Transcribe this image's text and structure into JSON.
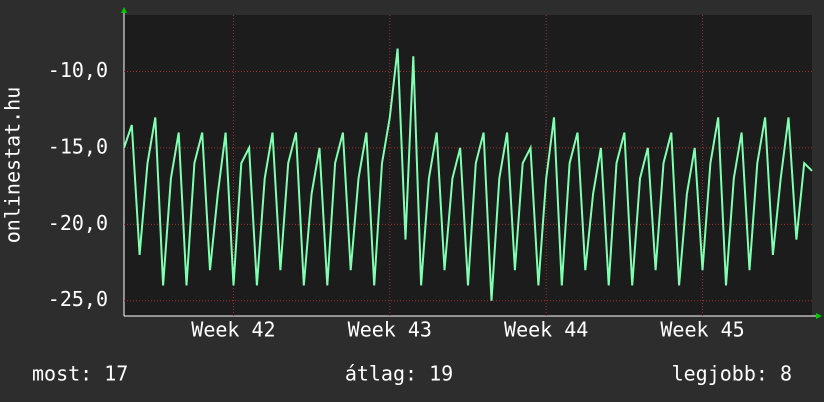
{
  "chart_data": {
    "type": "line",
    "y_axis_title": "onlinestat.hu",
    "xlim": [
      41.3,
      45.7
    ],
    "xticks": [
      {
        "value": 42,
        "label": "Week 42"
      },
      {
        "value": 43,
        "label": "Week 43"
      },
      {
        "value": 44,
        "label": "Week 44"
      },
      {
        "value": 45,
        "label": "Week 45"
      }
    ],
    "ylim": [
      -26,
      -6.3
    ],
    "yticks": [
      {
        "value": -25,
        "label": "-25,0"
      },
      {
        "value": -20,
        "label": "-20,0"
      },
      {
        "value": -15,
        "label": "-15,0"
      },
      {
        "value": -10,
        "label": "-10,0"
      }
    ],
    "grid": true,
    "series": [
      {
        "color": "#80ffb0",
        "x": [
          41.3,
          41.35,
          41.4,
          41.45,
          41.5,
          41.55,
          41.6,
          41.65,
          41.7,
          41.75,
          41.8,
          41.85,
          41.9,
          41.95,
          42.0,
          42.05,
          42.1,
          42.15,
          42.2,
          42.25,
          42.3,
          42.35,
          42.4,
          42.45,
          42.5,
          42.55,
          42.6,
          42.65,
          42.7,
          42.75,
          42.8,
          42.85,
          42.9,
          42.95,
          43.0,
          43.05,
          43.1,
          43.15,
          43.2,
          43.25,
          43.3,
          43.35,
          43.4,
          43.45,
          43.5,
          43.55,
          43.6,
          43.65,
          43.7,
          43.75,
          43.8,
          43.85,
          43.9,
          43.95,
          44.0,
          44.05,
          44.1,
          44.15,
          44.2,
          44.25,
          44.3,
          44.35,
          44.4,
          44.45,
          44.5,
          44.55,
          44.6,
          44.65,
          44.7,
          44.75,
          44.8,
          44.85,
          44.9,
          44.95,
          45.0,
          45.05,
          45.1,
          45.15,
          45.2,
          45.25,
          45.3,
          45.35,
          45.4,
          45.45,
          45.5,
          45.55,
          45.6,
          45.65,
          45.7
        ],
        "values": [
          -15,
          -13.5,
          -22,
          -16,
          -13,
          -24,
          -17,
          -14,
          -24,
          -16,
          -14,
          -23,
          -18,
          -14,
          -24,
          -16,
          -15,
          -24,
          -17,
          -14,
          -23,
          -16,
          -14,
          -24,
          -18,
          -15,
          -24,
          -16,
          -14,
          -23,
          -17,
          -14,
          -24,
          -16,
          -13,
          -8.5,
          -21,
          -9,
          -24,
          -17,
          -14,
          -23,
          -17,
          -15,
          -24,
          -16,
          -14,
          -25,
          -17,
          -14,
          -23,
          -16,
          -15,
          -24,
          -17,
          -13,
          -24,
          -16,
          -14,
          -23,
          -18,
          -15,
          -24,
          -16,
          -14,
          -24,
          -17,
          -15,
          -23,
          -16,
          -14,
          -24,
          -18,
          -15,
          -23,
          -16,
          -13,
          -24,
          -17,
          -14,
          -23,
          -16,
          -13,
          -22,
          -17,
          -13,
          -21,
          -16,
          -16.5
        ]
      }
    ],
    "footer": {
      "current": "most: 17",
      "average": "átlag: 19",
      "best": "legjobb: 8"
    }
  }
}
